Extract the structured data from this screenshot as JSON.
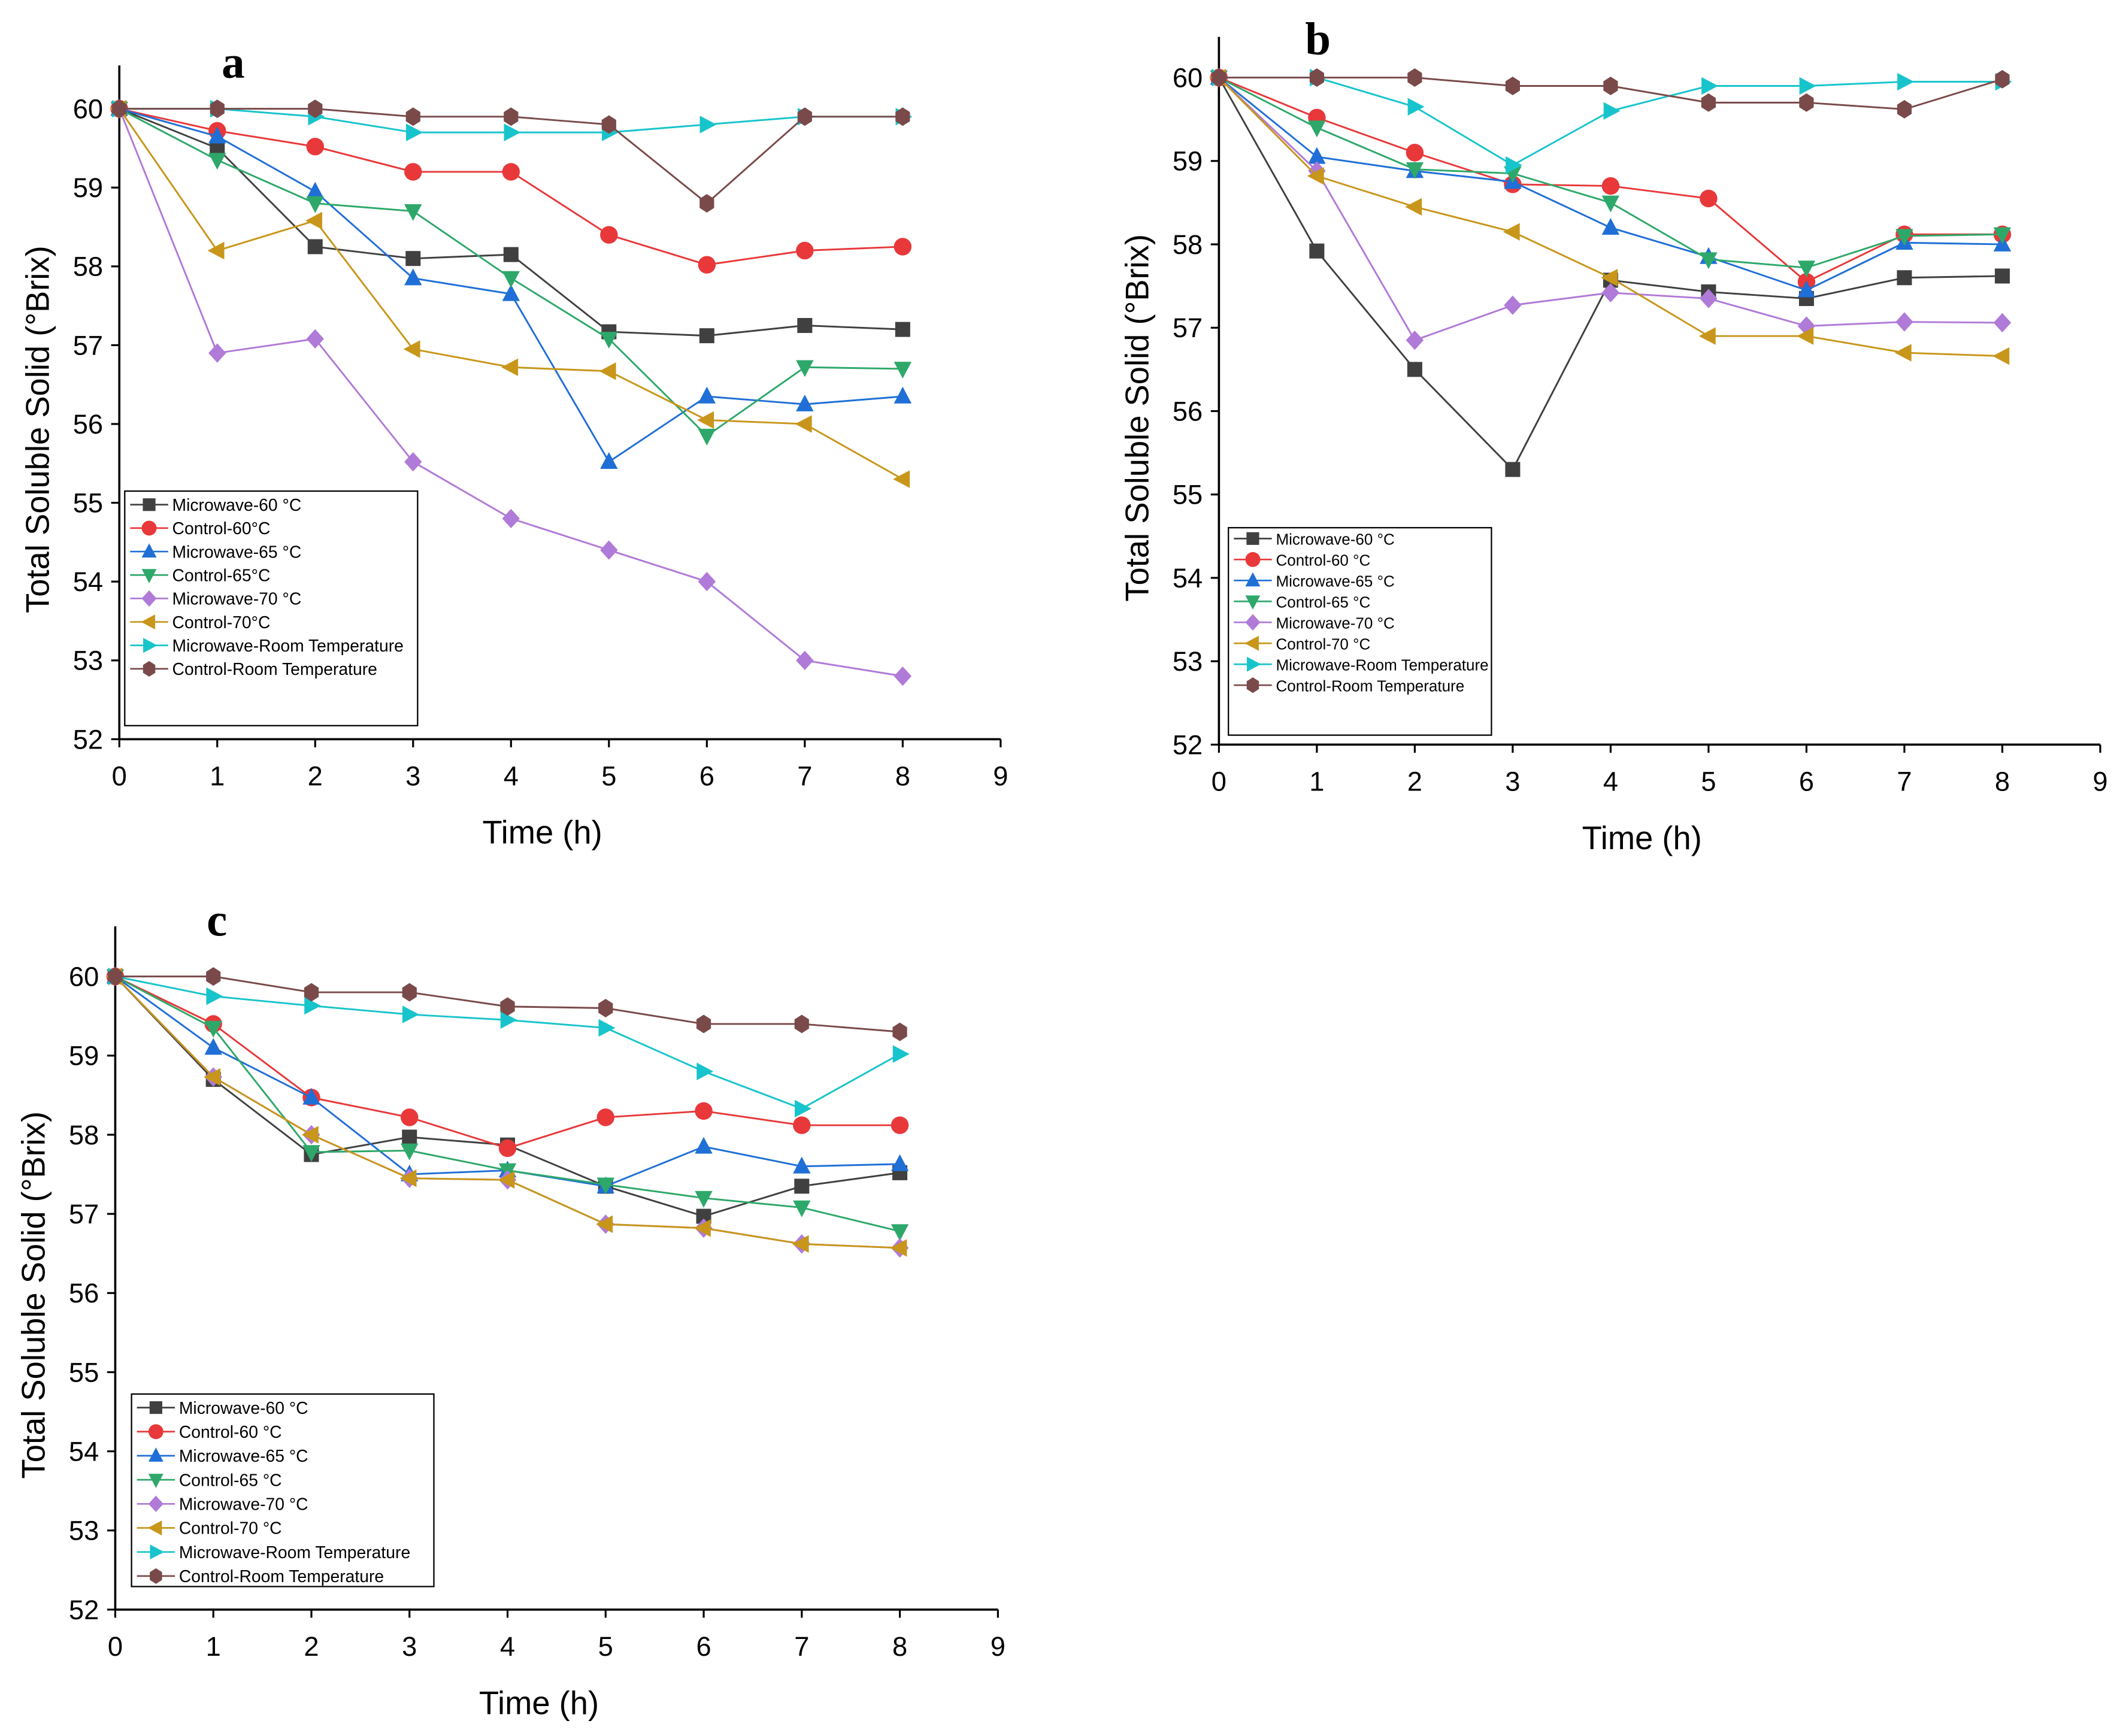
{
  "series_style": [
    {
      "key": "mw60",
      "color": "#404040",
      "marker": "square"
    },
    {
      "key": "c60",
      "color": "#e8383a",
      "marker": "circle"
    },
    {
      "key": "mw65",
      "color": "#1f6fd6",
      "marker": "triangle-up"
    },
    {
      "key": "c65",
      "color": "#2ea86a",
      "marker": "triangle-down"
    },
    {
      "key": "mw70",
      "color": "#b07ad8",
      "marker": "diamond"
    },
    {
      "key": "c70",
      "color": "#c8961a",
      "marker": "triangle-left"
    },
    {
      "key": "mwrt",
      "color": "#18c4cc",
      "marker": "triangle-right"
    },
    {
      "key": "crt",
      "color": "#7a4a4a",
      "marker": "hexagon"
    }
  ],
  "chart_data": [
    {
      "type": "line",
      "panel_label": "a",
      "xlabel": "Time (h)",
      "ylabel": "Total Soluble Solid (°Brix)",
      "xlim": [
        0,
        9
      ],
      "ylim": [
        52,
        60
      ],
      "xticks": [
        0,
        1,
        2,
        3,
        4,
        5,
        6,
        7,
        8,
        9
      ],
      "yticks": [
        52,
        53,
        54,
        55,
        56,
        57,
        58,
        59,
        60
      ],
      "legend_position": "bottom-left",
      "x": [
        0,
        1,
        2,
        3,
        4,
        5,
        6,
        7,
        8
      ],
      "series": [
        {
          "name": "Microwave-60 °C",
          "values": [
            60,
            59.5,
            58.25,
            58.1,
            58.15,
            57.17,
            57.12,
            57.25,
            57.2
          ]
        },
        {
          "name": "Control-60°C",
          "values": [
            60,
            59.72,
            59.52,
            59.2,
            59.2,
            58.4,
            58.02,
            58.2,
            58.25
          ]
        },
        {
          "name": "Microwave-65 °C",
          "values": [
            60,
            59.65,
            58.95,
            57.85,
            57.65,
            55.52,
            56.35,
            56.25,
            56.35
          ]
        },
        {
          "name": "Control-65°C",
          "values": [
            60,
            59.35,
            58.8,
            58.7,
            57.85,
            57.08,
            55.85,
            56.72,
            56.7
          ]
        },
        {
          "name": "Microwave-70 °C",
          "values": [
            60,
            56.9,
            57.08,
            55.52,
            54.8,
            54.4,
            54.0,
            53.0,
            52.8
          ]
        },
        {
          "name": "Control-70°C",
          "values": [
            60,
            58.2,
            58.58,
            56.95,
            56.72,
            56.67,
            56.05,
            56.0,
            55.3
          ]
        },
        {
          "name": "Microwave-Room Temperature",
          "values": [
            60,
            60,
            59.9,
            59.7,
            59.7,
            59.7,
            59.8,
            59.9,
            59.9
          ]
        },
        {
          "name": "Control-Room Temperature",
          "values": [
            60,
            60,
            60,
            59.9,
            59.9,
            59.8,
            58.8,
            59.9,
            59.9
          ]
        }
      ]
    },
    {
      "type": "line",
      "panel_label": "b",
      "xlabel": "Time (h)",
      "ylabel": "Total Soluble Solid (°Brix)",
      "xlim": [
        0,
        9
      ],
      "ylim": [
        52,
        60
      ],
      "xticks": [
        0,
        1,
        2,
        3,
        4,
        5,
        6,
        7,
        8,
        9
      ],
      "yticks": [
        52,
        53,
        54,
        55,
        56,
        57,
        58,
        59,
        60
      ],
      "legend_position": "bottom-left",
      "x": [
        0,
        1,
        2,
        3,
        4,
        5,
        6,
        7,
        8
      ],
      "series": [
        {
          "name": "Microwave-60 °C",
          "values": [
            60,
            57.92,
            56.5,
            55.3,
            57.57,
            57.43,
            57.35,
            57.6,
            57.62
          ]
        },
        {
          "name": "Control-60 °C",
          "values": [
            60,
            59.52,
            59.1,
            58.72,
            58.7,
            58.55,
            57.55,
            58.12,
            58.12
          ]
        },
        {
          "name": "Microwave-65 °C",
          "values": [
            60,
            59.05,
            58.88,
            58.75,
            58.2,
            57.85,
            57.45,
            58.02,
            58.0
          ]
        },
        {
          "name": "Control-65 °C",
          "values": [
            60,
            59.4,
            58.9,
            58.85,
            58.5,
            57.82,
            57.72,
            58.1,
            58.12
          ]
        },
        {
          "name": "Microwave-70 °C",
          "values": [
            60,
            58.88,
            56.85,
            57.27,
            57.42,
            57.35,
            57.02,
            57.07,
            57.06
          ]
        },
        {
          "name": "Control-70 °C",
          "values": [
            60,
            58.82,
            58.45,
            58.15,
            57.6,
            56.9,
            56.9,
            56.7,
            56.66
          ]
        },
        {
          "name": "Microwave-Room Temperature",
          "values": [
            60,
            60,
            59.65,
            58.95,
            59.6,
            59.9,
            59.9,
            59.95,
            59.95
          ]
        },
        {
          "name": "Control-Room Temperature",
          "values": [
            60,
            60,
            60,
            59.9,
            59.9,
            59.7,
            59.7,
            59.62,
            59.98
          ]
        }
      ]
    },
    {
      "type": "line",
      "panel_label": "c",
      "xlabel": "Time (h)",
      "ylabel": "Total Soluble Solid (°Brix)",
      "xlim": [
        0,
        9
      ],
      "ylim": [
        52,
        60
      ],
      "xticks": [
        0,
        1,
        2,
        3,
        4,
        5,
        6,
        7,
        8,
        9
      ],
      "yticks": [
        52,
        53,
        54,
        55,
        56,
        57,
        58,
        59,
        60
      ],
      "legend_position": "bottom-left",
      "x": [
        0,
        1,
        2,
        3,
        4,
        5,
        6,
        7,
        8
      ],
      "series": [
        {
          "name": "Microwave-60 °C",
          "values": [
            60,
            58.7,
            57.75,
            57.97,
            57.87,
            57.35,
            56.97,
            57.35,
            57.52
          ]
        },
        {
          "name": "Control-60 °C",
          "values": [
            60,
            59.4,
            58.47,
            58.22,
            57.83,
            58.22,
            58.3,
            58.12,
            58.12
          ]
        },
        {
          "name": "Microwave-65 °C",
          "values": [
            60,
            59.1,
            58.47,
            57.5,
            57.55,
            57.35,
            57.85,
            57.6,
            57.63
          ]
        },
        {
          "name": "Control-65 °C",
          "values": [
            60,
            59.35,
            57.78,
            57.8,
            57.55,
            57.37,
            57.2,
            57.08,
            56.78
          ]
        },
        {
          "name": "Microwave-70 °C",
          "values": [
            60,
            58.73,
            58.0,
            57.45,
            57.43,
            56.87,
            56.82,
            56.62,
            56.57
          ]
        },
        {
          "name": "Control-70 °C",
          "values": [
            60,
            58.73,
            58.0,
            57.45,
            57.43,
            56.87,
            56.82,
            56.62,
            56.57
          ]
        },
        {
          "name": "Microwave-Room Temperature",
          "values": [
            60,
            59.75,
            59.63,
            59.52,
            59.45,
            59.35,
            58.8,
            58.33,
            59.02
          ]
        },
        {
          "name": "Control-Room Temperature",
          "values": [
            60,
            60,
            59.8,
            59.8,
            59.62,
            59.6,
            59.4,
            59.4,
            59.3
          ]
        }
      ]
    }
  ]
}
